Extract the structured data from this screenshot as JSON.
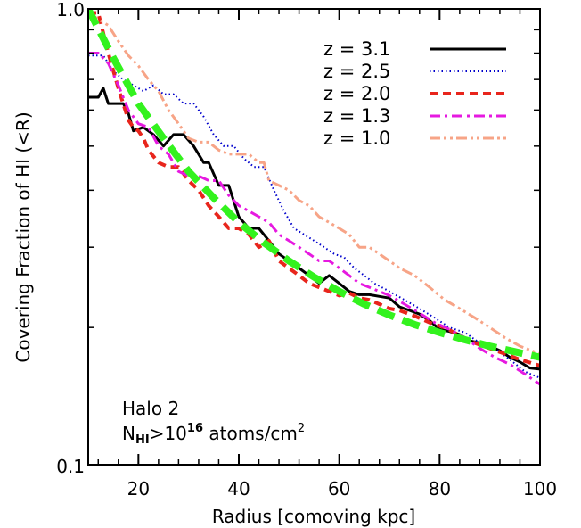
{
  "chart_data": {
    "type": "line",
    "xlabel": "Radius [comoving kpc]",
    "ylabel": "Covering Fraction of HI (<R)",
    "xlim": [
      10,
      100
    ],
    "ylim": [
      0.1,
      1.0
    ],
    "yscale": "log",
    "xticks": [
      20,
      40,
      60,
      80,
      100
    ],
    "xtick_labels": [
      "20",
      "40",
      "60",
      "80",
      "100"
    ],
    "yticks": [
      0.1,
      1.0
    ],
    "ytick_labels": [
      "0.1",
      "1.0"
    ],
    "legend_position": "top-right",
    "annotations": {
      "line1": "Halo 2",
      "n_main": "N",
      "n_sub": "HI",
      "n_mid": ">10",
      "n_sup": "16",
      "n_end": " atoms/cm",
      "n_sup2": "2"
    },
    "series": [
      {
        "name": "z = 3.1",
        "color": "#000000",
        "style": "solid",
        "x": [
          10,
          12,
          13,
          14,
          17,
          18,
          19,
          21,
          23,
          25,
          27,
          29,
          31,
          33,
          34,
          36,
          38,
          40,
          42,
          44,
          46,
          48,
          50,
          52,
          54,
          56,
          58,
          60,
          62,
          64,
          66,
          68,
          70,
          72,
          74,
          76,
          78,
          80,
          82,
          84,
          86,
          88,
          90,
          92,
          94,
          96,
          98,
          100
        ],
        "y": [
          0.64,
          0.64,
          0.67,
          0.62,
          0.62,
          0.59,
          0.54,
          0.55,
          0.53,
          0.5,
          0.53,
          0.53,
          0.5,
          0.46,
          0.46,
          0.41,
          0.41,
          0.35,
          0.33,
          0.33,
          0.31,
          0.29,
          0.28,
          0.27,
          0.26,
          0.25,
          0.26,
          0.25,
          0.24,
          0.236,
          0.236,
          0.234,
          0.232,
          0.222,
          0.218,
          0.214,
          0.207,
          0.198,
          0.196,
          0.193,
          0.187,
          0.185,
          0.182,
          0.178,
          0.172,
          0.168,
          0.163,
          0.162
        ]
      },
      {
        "name": "z = 2.5",
        "color": "#0000cc",
        "style": "dotted",
        "x": [
          10,
          13,
          15,
          17,
          19,
          21,
          23,
          25,
          27,
          29,
          31,
          33,
          35,
          37,
          39,
          41,
          43,
          45,
          47,
          49,
          51,
          53,
          55,
          57,
          59,
          61,
          63,
          65,
          67,
          70,
          73,
          76,
          79,
          82,
          85,
          88,
          91,
          94,
          97,
          100
        ],
        "y": [
          0.79,
          0.79,
          0.73,
          0.7,
          0.68,
          0.66,
          0.68,
          0.65,
          0.65,
          0.62,
          0.62,
          0.58,
          0.53,
          0.5,
          0.5,
          0.47,
          0.45,
          0.45,
          0.4,
          0.36,
          0.33,
          0.32,
          0.31,
          0.3,
          0.29,
          0.285,
          0.27,
          0.26,
          0.25,
          0.24,
          0.23,
          0.22,
          0.21,
          0.2,
          0.195,
          0.185,
          0.18,
          0.17,
          0.16,
          0.155
        ]
      },
      {
        "name": "z = 2.0",
        "color": "#e8251c",
        "style": "dashed",
        "x": [
          10,
          12,
          14,
          16,
          18,
          19,
          20,
          21,
          22,
          24,
          26,
          28,
          30,
          32,
          34,
          36,
          38,
          40,
          42,
          44,
          46,
          48,
          50,
          52,
          54,
          56,
          58,
          60,
          62,
          64,
          66,
          68,
          70,
          72,
          75,
          78,
          81,
          84,
          87,
          90,
          93,
          96,
          100
        ],
        "y": [
          0.98,
          0.98,
          0.8,
          0.67,
          0.57,
          0.55,
          0.54,
          0.52,
          0.49,
          0.46,
          0.45,
          0.45,
          0.42,
          0.4,
          0.37,
          0.35,
          0.33,
          0.33,
          0.32,
          0.3,
          0.31,
          0.28,
          0.27,
          0.26,
          0.25,
          0.245,
          0.24,
          0.235,
          0.238,
          0.232,
          0.23,
          0.225,
          0.22,
          0.218,
          0.212,
          0.205,
          0.2,
          0.192,
          0.185,
          0.18,
          0.175,
          0.17,
          0.165
        ]
      },
      {
        "name": "z = 1.3",
        "color": "#e619e0",
        "style": "dashdot",
        "x": [
          10,
          12,
          14,
          16,
          18,
          20,
          22,
          24,
          26,
          28,
          30,
          32,
          34,
          36,
          38,
          40,
          42,
          44,
          46,
          48,
          50,
          52,
          54,
          56,
          58,
          60,
          62,
          64,
          66,
          68,
          70,
          73,
          76,
          79,
          82,
          85,
          88,
          91,
          94,
          97,
          100
        ],
        "y": [
          0.8,
          0.8,
          0.76,
          0.68,
          0.6,
          0.56,
          0.55,
          0.5,
          0.48,
          0.44,
          0.43,
          0.43,
          0.42,
          0.42,
          0.39,
          0.37,
          0.36,
          0.35,
          0.34,
          0.32,
          0.31,
          0.3,
          0.29,
          0.28,
          0.28,
          0.27,
          0.26,
          0.25,
          0.245,
          0.24,
          0.235,
          0.225,
          0.215,
          0.205,
          0.198,
          0.19,
          0.18,
          0.172,
          0.166,
          0.158,
          0.15
        ]
      },
      {
        "name": "z = 1.0",
        "color": "#f7a487",
        "style": "dashdotdot",
        "x": [
          10,
          12,
          14,
          16,
          18,
          20,
          22,
          24,
          26,
          28,
          30,
          32,
          34,
          36,
          38,
          40,
          42,
          44,
          45,
          46,
          48,
          50,
          52,
          54,
          56,
          58,
          60,
          62,
          64,
          66,
          68,
          70,
          72,
          75,
          78,
          81,
          84,
          87,
          90,
          93,
          96,
          100
        ],
        "y": [
          0.98,
          0.95,
          0.92,
          0.85,
          0.79,
          0.75,
          0.7,
          0.66,
          0.6,
          0.56,
          0.52,
          0.51,
          0.51,
          0.49,
          0.48,
          0.48,
          0.48,
          0.46,
          0.46,
          0.42,
          0.41,
          0.4,
          0.38,
          0.37,
          0.35,
          0.34,
          0.33,
          0.32,
          0.3,
          0.3,
          0.29,
          0.28,
          0.27,
          0.26,
          0.245,
          0.23,
          0.22,
          0.21,
          0.2,
          0.19,
          0.182,
          0.175
        ]
      },
      {
        "name": "",
        "color": "#33f21e",
        "style": "fit-dashed",
        "x": [
          10,
          15,
          20,
          25,
          30,
          35,
          40,
          45,
          50,
          55,
          60,
          65,
          70,
          75,
          80,
          85,
          90,
          95,
          100
        ],
        "y": [
          1.0,
          0.78,
          0.62,
          0.52,
          0.44,
          0.385,
          0.34,
          0.307,
          0.28,
          0.258,
          0.24,
          0.225,
          0.213,
          0.203,
          0.195,
          0.188,
          0.182,
          0.177,
          0.172
        ]
      }
    ]
  }
}
